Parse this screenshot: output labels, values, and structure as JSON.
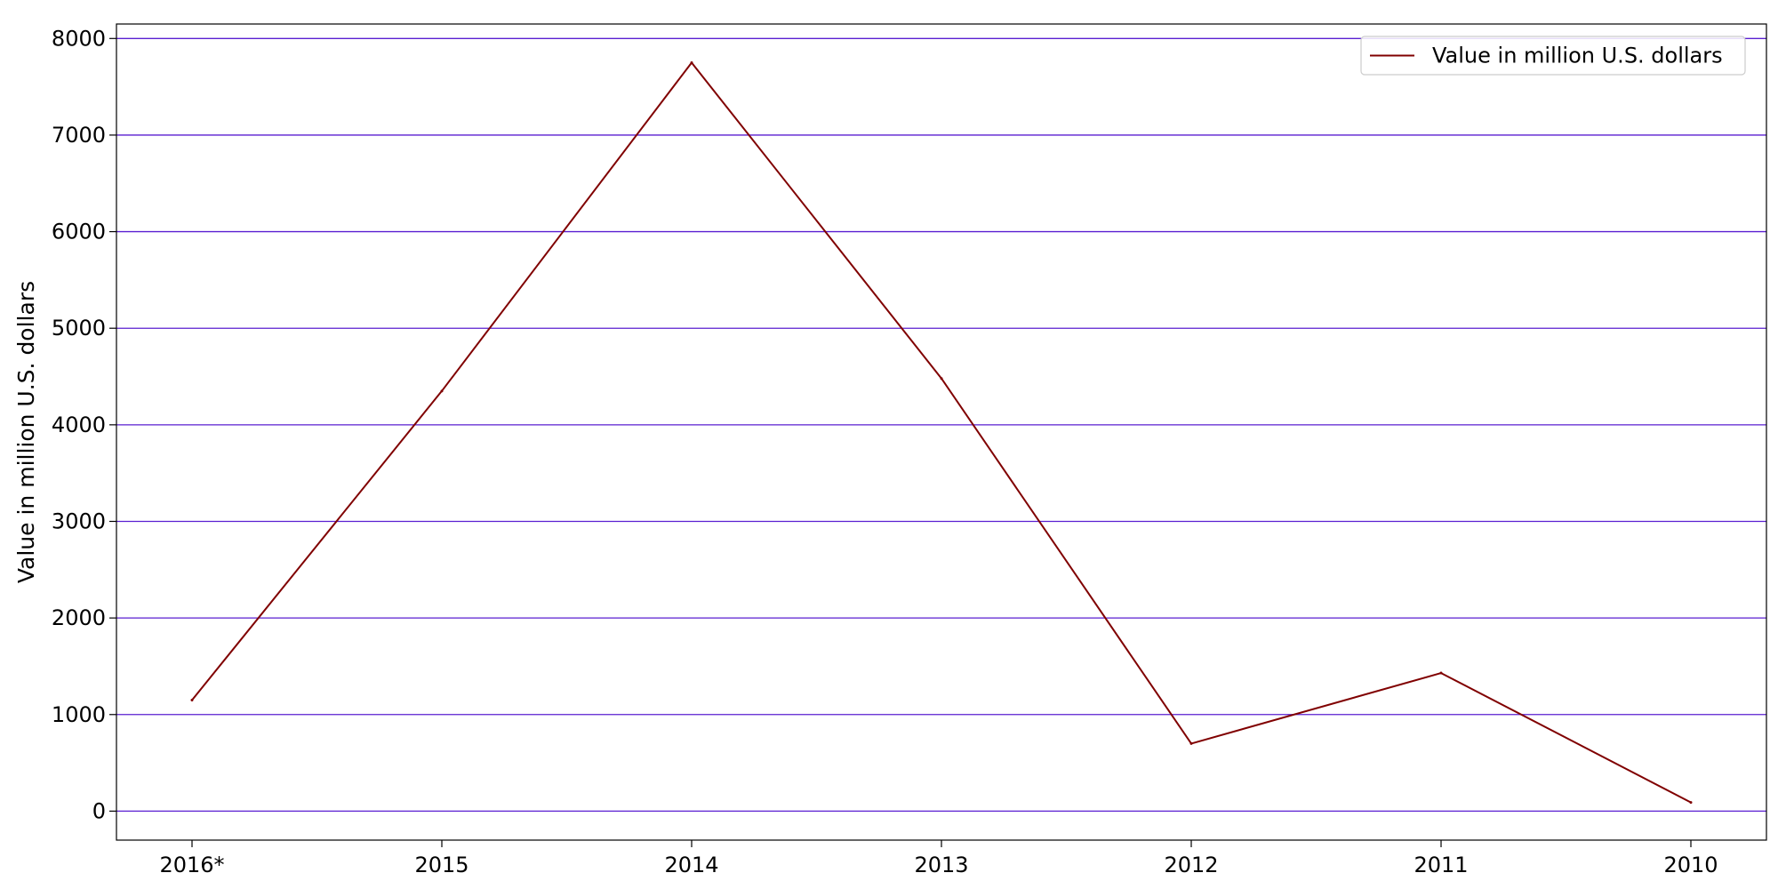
{
  "chart_data": {
    "type": "line",
    "title": "",
    "xlabel": "",
    "ylabel": "Value in million U.S. dollars",
    "categories": [
      "2016*",
      "2015",
      "2014",
      "2013",
      "2012",
      "2011",
      "2010"
    ],
    "series": [
      {
        "name": "Value in million U.S. dollars",
        "values": [
          1150,
          4350,
          7750,
          4480,
          700,
          1430,
          90
        ],
        "color": "#800000"
      }
    ],
    "ylim": [
      -300,
      8150
    ],
    "yticks": [
      0,
      1000,
      2000,
      3000,
      4000,
      5000,
      6000,
      7000,
      8000
    ],
    "grid": true,
    "grid_axis": "y",
    "grid_color": "#5a1fd1",
    "legend_position": "top-right"
  }
}
